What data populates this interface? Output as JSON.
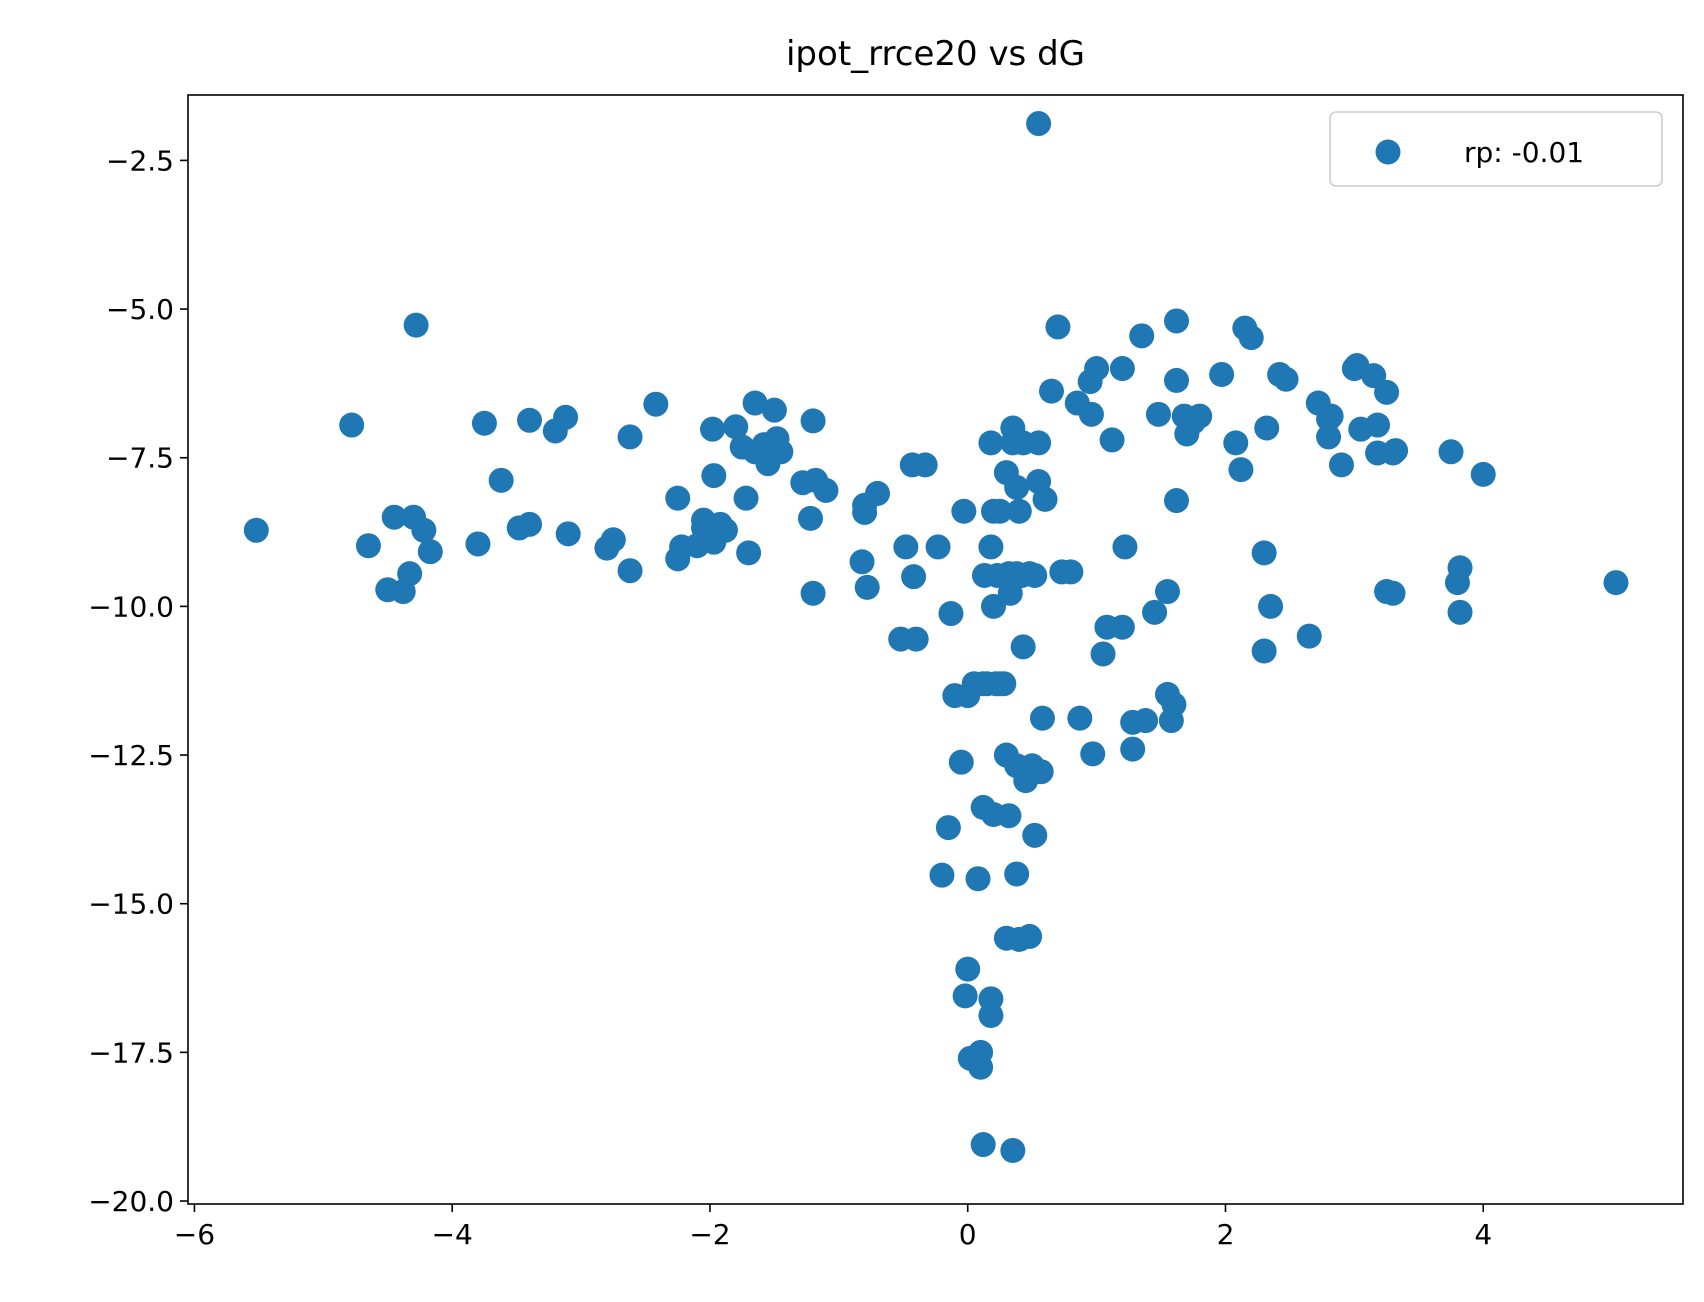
{
  "chart_data": {
    "type": "scatter",
    "title": "ipot_rrce20 vs dG",
    "xlabel": "",
    "ylabel": "",
    "xlim": [
      -6.05,
      5.55
    ],
    "ylim": [
      -20.05,
      -1.4
    ],
    "xticks": [
      -6,
      -4,
      -2,
      0,
      2,
      4
    ],
    "yticks": [
      -20.0,
      -17.5,
      -15.0,
      -12.5,
      -10.0,
      -7.5,
      -5.0,
      -2.5
    ],
    "x_tick_labels": [
      "−6",
      "−4",
      "−2",
      "0",
      "2",
      "4"
    ],
    "y_tick_labels": [
      "−20.0",
      "−17.5",
      "−15.0",
      "−12.5",
      "−10.0",
      "−7.5",
      "−5.0",
      "−2.5"
    ],
    "grid": false,
    "legend_position": "top-right",
    "series": [
      {
        "name": "rp: -0.01",
        "color": "#1f77b4",
        "points": [
          [
            -5.52,
            -8.72
          ],
          [
            -4.78,
            -6.95
          ],
          [
            -4.65,
            -8.98
          ],
          [
            -4.5,
            -9.72
          ],
          [
            -4.45,
            -8.5
          ],
          [
            -4.38,
            -9.75
          ],
          [
            -4.33,
            -9.45
          ],
          [
            -4.28,
            -5.27
          ],
          [
            -4.3,
            -8.5
          ],
          [
            -4.22,
            -8.72
          ],
          [
            -4.17,
            -9.08
          ],
          [
            -3.8,
            -8.95
          ],
          [
            -3.75,
            -6.92
          ],
          [
            -3.62,
            -7.88
          ],
          [
            -3.48,
            -8.68
          ],
          [
            -3.4,
            -8.62
          ],
          [
            -3.4,
            -6.87
          ],
          [
            -3.2,
            -7.05
          ],
          [
            -3.12,
            -6.82
          ],
          [
            -3.1,
            -8.78
          ],
          [
            -2.8,
            -9.02
          ],
          [
            -2.75,
            -8.88
          ],
          [
            -2.62,
            -7.15
          ],
          [
            -2.62,
            -9.4
          ],
          [
            -2.42,
            -6.6
          ],
          [
            -2.25,
            -8.18
          ],
          [
            -2.25,
            -9.2
          ],
          [
            -2.22,
            -9.0
          ],
          [
            -2.1,
            -8.98
          ],
          [
            -2.05,
            -8.55
          ],
          [
            -2.05,
            -8.68
          ],
          [
            -1.98,
            -7.02
          ],
          [
            -1.97,
            -7.8
          ],
          [
            -1.97,
            -8.92
          ],
          [
            -1.92,
            -8.62
          ],
          [
            -1.88,
            -8.72
          ],
          [
            -1.8,
            -6.98
          ],
          [
            -1.75,
            -7.32
          ],
          [
            -1.72,
            -8.18
          ],
          [
            -1.7,
            -9.1
          ],
          [
            -1.65,
            -7.4
          ],
          [
            -1.65,
            -6.58
          ],
          [
            -1.58,
            -7.28
          ],
          [
            -1.55,
            -7.6
          ],
          [
            -1.5,
            -6.7
          ],
          [
            -1.48,
            -7.18
          ],
          [
            -1.45,
            -7.4
          ],
          [
            -1.28,
            -7.92
          ],
          [
            -1.22,
            -8.52
          ],
          [
            -1.2,
            -6.88
          ],
          [
            -1.2,
            -9.78
          ],
          [
            -1.18,
            -7.88
          ],
          [
            -1.1,
            -8.05
          ],
          [
            -0.82,
            -9.25
          ],
          [
            -0.8,
            -8.3
          ],
          [
            -0.8,
            -8.42
          ],
          [
            -0.78,
            -9.68
          ],
          [
            -0.7,
            -8.1
          ],
          [
            -0.52,
            -10.55
          ],
          [
            -0.48,
            -9.0
          ],
          [
            -0.43,
            -7.62
          ],
          [
            -0.42,
            -9.5
          ],
          [
            -0.4,
            -10.55
          ],
          [
            -0.33,
            -7.62
          ],
          [
            -0.23,
            -9.0
          ],
          [
            -0.2,
            -14.52
          ],
          [
            -0.15,
            -13.72
          ],
          [
            -0.13,
            -10.12
          ],
          [
            -0.1,
            -11.5
          ],
          [
            -0.03,
            -8.4
          ],
          [
            -0.05,
            -12.62
          ],
          [
            -0.02,
            -16.55
          ],
          [
            0.0,
            -16.1
          ],
          [
            0.0,
            -11.5
          ],
          [
            0.02,
            -17.6
          ],
          [
            0.05,
            -11.3
          ],
          [
            0.08,
            -14.58
          ],
          [
            0.1,
            -17.75
          ],
          [
            0.1,
            -17.5
          ],
          [
            0.12,
            -11.3
          ],
          [
            0.12,
            -13.38
          ],
          [
            0.12,
            -19.05
          ],
          [
            0.13,
            -9.48
          ],
          [
            0.15,
            -11.3
          ],
          [
            0.18,
            -9.0
          ],
          [
            0.18,
            -7.25
          ],
          [
            0.18,
            -16.6
          ],
          [
            0.18,
            -16.88
          ],
          [
            0.2,
            -8.4
          ],
          [
            0.2,
            -13.5
          ],
          [
            0.2,
            -10.0
          ],
          [
            0.22,
            -11.3
          ],
          [
            0.23,
            -9.48
          ],
          [
            0.25,
            -8.4
          ],
          [
            0.25,
            -11.3
          ],
          [
            0.28,
            -11.3
          ],
          [
            0.3,
            -7.75
          ],
          [
            0.3,
            -12.5
          ],
          [
            0.3,
            -15.58
          ],
          [
            0.32,
            -9.45
          ],
          [
            0.32,
            -13.52
          ],
          [
            0.33,
            -9.78
          ],
          [
            0.35,
            -7.0
          ],
          [
            0.35,
            -7.25
          ],
          [
            0.35,
            -19.15
          ],
          [
            0.38,
            -14.5
          ],
          [
            0.38,
            -12.68
          ],
          [
            0.38,
            -9.45
          ],
          [
            0.38,
            -8.0
          ],
          [
            0.4,
            -8.4
          ],
          [
            0.4,
            -15.6
          ],
          [
            0.42,
            -9.48
          ],
          [
            0.43,
            -7.25
          ],
          [
            0.43,
            -10.68
          ],
          [
            0.45,
            -12.93
          ],
          [
            0.48,
            -15.55
          ],
          [
            0.48,
            -9.45
          ],
          [
            0.5,
            -12.68
          ],
          [
            0.52,
            -13.85
          ],
          [
            0.52,
            -9.48
          ],
          [
            0.55,
            -7.25
          ],
          [
            0.55,
            -1.88
          ],
          [
            0.55,
            -7.9
          ],
          [
            0.57,
            -12.78
          ],
          [
            0.58,
            -11.88
          ],
          [
            0.6,
            -8.2
          ],
          [
            0.65,
            -6.38
          ],
          [
            0.7,
            -5.3
          ],
          [
            0.73,
            -9.42
          ],
          [
            0.8,
            -9.42
          ],
          [
            0.85,
            -6.58
          ],
          [
            0.87,
            -11.88
          ],
          [
            0.95,
            -6.22
          ],
          [
            0.96,
            -6.77
          ],
          [
            0.97,
            -12.48
          ],
          [
            1.0,
            -6.0
          ],
          [
            1.05,
            -10.8
          ],
          [
            1.08,
            -10.35
          ],
          [
            1.12,
            -7.2
          ],
          [
            1.2,
            -10.35
          ],
          [
            1.2,
            -6.0
          ],
          [
            1.22,
            -9.0
          ],
          [
            1.28,
            -12.4
          ],
          [
            1.28,
            -11.95
          ],
          [
            1.35,
            -5.45
          ],
          [
            1.38,
            -11.92
          ],
          [
            1.45,
            -10.1
          ],
          [
            1.48,
            -6.77
          ],
          [
            1.55,
            -9.75
          ],
          [
            1.55,
            -11.48
          ],
          [
            1.58,
            -11.92
          ],
          [
            1.6,
            -11.65
          ],
          [
            1.62,
            -6.2
          ],
          [
            1.62,
            -5.2
          ],
          [
            1.62,
            -8.22
          ],
          [
            1.68,
            -6.8
          ],
          [
            1.7,
            -7.1
          ],
          [
            1.75,
            -6.9
          ],
          [
            1.8,
            -6.8
          ],
          [
            1.97,
            -6.1
          ],
          [
            2.08,
            -7.25
          ],
          [
            2.12,
            -7.7
          ],
          [
            2.15,
            -5.32
          ],
          [
            2.2,
            -5.48
          ],
          [
            2.3,
            -9.1
          ],
          [
            2.3,
            -10.75
          ],
          [
            2.32,
            -7.0
          ],
          [
            2.35,
            -10.0
          ],
          [
            2.42,
            -6.1
          ],
          [
            2.47,
            -6.18
          ],
          [
            2.65,
            -10.5
          ],
          [
            2.72,
            -6.58
          ],
          [
            2.8,
            -7.15
          ],
          [
            2.8,
            -6.85
          ],
          [
            2.82,
            -6.8
          ],
          [
            2.9,
            -7.62
          ],
          [
            3.0,
            -6.0
          ],
          [
            3.02,
            -5.95
          ],
          [
            3.05,
            -7.02
          ],
          [
            3.15,
            -6.12
          ],
          [
            3.18,
            -7.42
          ],
          [
            3.18,
            -6.95
          ],
          [
            3.25,
            -6.4
          ],
          [
            3.25,
            -9.75
          ],
          [
            3.3,
            -9.78
          ],
          [
            3.3,
            -7.42
          ],
          [
            3.32,
            -7.38
          ],
          [
            3.75,
            -7.4
          ],
          [
            3.8,
            -9.6
          ],
          [
            3.82,
            -9.35
          ],
          [
            3.82,
            -10.1
          ],
          [
            4.0,
            -7.78
          ],
          [
            5.03,
            -9.6
          ]
        ]
      }
    ]
  }
}
